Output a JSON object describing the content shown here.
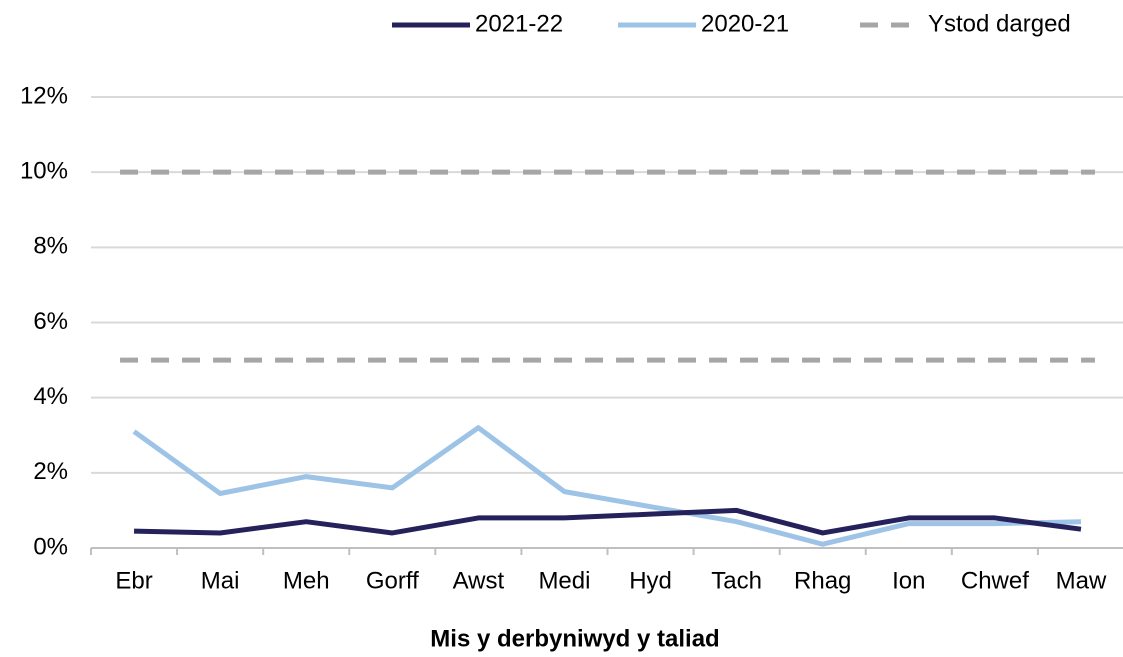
{
  "chart_data": {
    "type": "line",
    "x_label": "Mis y derbyniwyd y taliad",
    "categories": [
      "Ebr",
      "Mai",
      "Meh",
      "Gorff",
      "Awst",
      "Medi",
      "Hyd",
      "Tach",
      "Rhag",
      "Ion",
      "Chwef",
      "Maw"
    ],
    "series": [
      {
        "name": "2021-22",
        "color": "#25215a",
        "values": [
          0.45,
          0.4,
          0.7,
          0.4,
          0.8,
          0.8,
          0.9,
          1.0,
          0.4,
          0.8,
          0.8,
          0.5
        ]
      },
      {
        "name": "2020-21",
        "color": "#9dc3e6",
        "values": [
          3.1,
          1.45,
          1.9,
          1.6,
          3.2,
          1.5,
          1.1,
          0.7,
          0.1,
          0.65,
          0.65,
          0.7
        ]
      }
    ],
    "reference_lines": {
      "name": "Ystod darged",
      "color": "#a6a6a6",
      "values": [
        5,
        10
      ]
    },
    "ylim": [
      0,
      12
    ],
    "yticks": [
      {
        "value": 0,
        "label": "0%"
      },
      {
        "value": 2,
        "label": "2%"
      },
      {
        "value": 4,
        "label": "4%"
      },
      {
        "value": 6,
        "label": "6%"
      },
      {
        "value": 8,
        "label": "8%"
      },
      {
        "value": 10,
        "label": "10%"
      },
      {
        "value": 12,
        "label": "12%"
      }
    ],
    "grid": true,
    "legend": "top-right"
  }
}
